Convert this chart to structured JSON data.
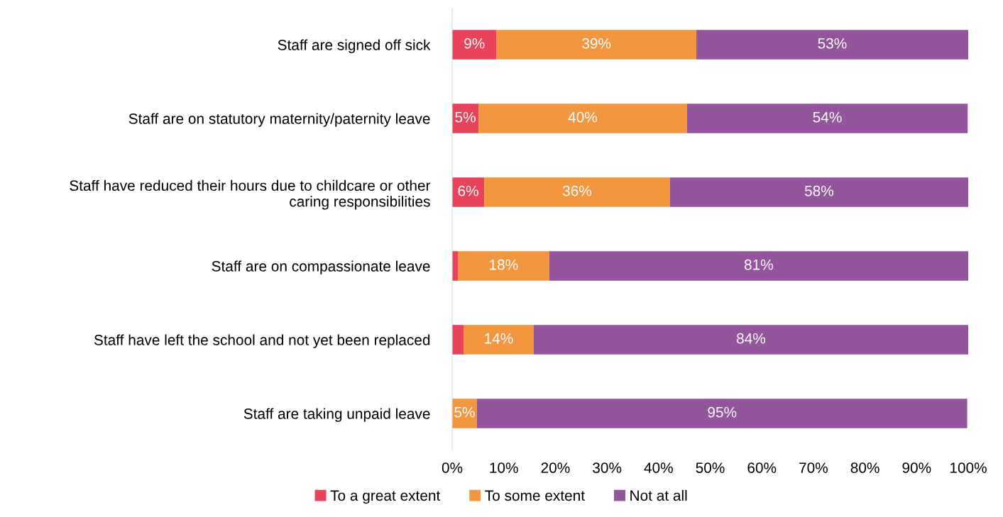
{
  "chart_data": {
    "type": "bar",
    "orientation": "horizontal",
    "stacked": true,
    "categories": [
      "Staff are signed off sick",
      "Staff are on statutory maternity/paternity leave",
      "Staff have reduced their hours due to childcare or other\ncaring responsibilities",
      "Staff are on compassionate leave",
      "Staff have left the school and not yet been replaced",
      "Staff are taking unpaid leave"
    ],
    "series": [
      {
        "name": "To a great extent",
        "color": "#e8435a",
        "values": [
          8.6,
          5.1,
          6.2,
          1.1,
          2.2,
          null
        ],
        "value_labels": [
          "9%",
          "5%",
          "6%",
          null,
          null,
          null
        ]
      },
      {
        "name": "To some extent",
        "color": "#f29740",
        "values": [
          38.7,
          40.4,
          36.0,
          17.7,
          13.6,
          4.8
        ],
        "value_labels": [
          "39%",
          "40%",
          "36%",
          "18%",
          "14%",
          "5%"
        ]
      },
      {
        "name": "Not at all",
        "color": "#93559b",
        "values": [
          52.7,
          54.4,
          57.8,
          81.2,
          84.2,
          95.0
        ],
        "value_labels": [
          "53%",
          "54%",
          "58%",
          "81%",
          "84%",
          "95%"
        ]
      }
    ],
    "xlim": [
      0,
      100
    ],
    "xticks": [
      {
        "value": 0,
        "label": "0%"
      },
      {
        "value": 10,
        "label": "10%"
      },
      {
        "value": 20,
        "label": "20%"
      },
      {
        "value": 30,
        "label": "30%"
      },
      {
        "value": 40,
        "label": "40%"
      },
      {
        "value": 50,
        "label": "50%"
      },
      {
        "value": 60,
        "label": "60%"
      },
      {
        "value": 70,
        "label": "70%"
      },
      {
        "value": 80,
        "label": "80%"
      },
      {
        "value": 90,
        "label": "90%"
      },
      {
        "value": 100,
        "label": "100%"
      }
    ],
    "grid": false,
    "legend": "bottom"
  }
}
